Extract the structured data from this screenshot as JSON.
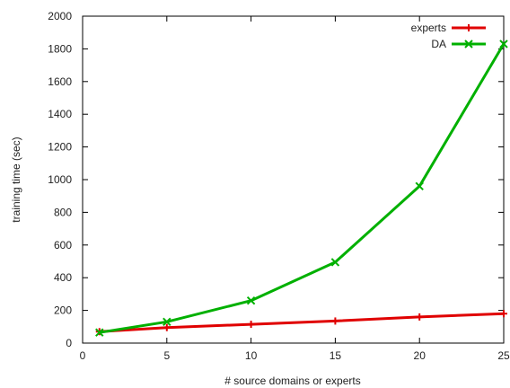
{
  "chart_data": {
    "type": "line",
    "title": "",
    "xlabel": "# source domains or experts",
    "ylabel": "training time (sec)",
    "xlim": [
      0,
      25
    ],
    "ylim": [
      0,
      2000
    ],
    "xticks": [
      0,
      5,
      10,
      15,
      20,
      25
    ],
    "yticks": [
      0,
      200,
      400,
      600,
      800,
      1000,
      1200,
      1400,
      1600,
      1800,
      2000
    ],
    "grid": false,
    "legend_position": "top-right",
    "series": [
      {
        "name": "experts",
        "color": "#e00000",
        "marker": "plus",
        "x": [
          1,
          5,
          10,
          15,
          20,
          25
        ],
        "y": [
          70,
          95,
          115,
          135,
          160,
          180
        ]
      },
      {
        "name": "DA",
        "color": "#00b000",
        "marker": "cross",
        "x": [
          1,
          5,
          10,
          15,
          20,
          25
        ],
        "y": [
          65,
          130,
          260,
          495,
          960,
          1830
        ]
      }
    ]
  }
}
